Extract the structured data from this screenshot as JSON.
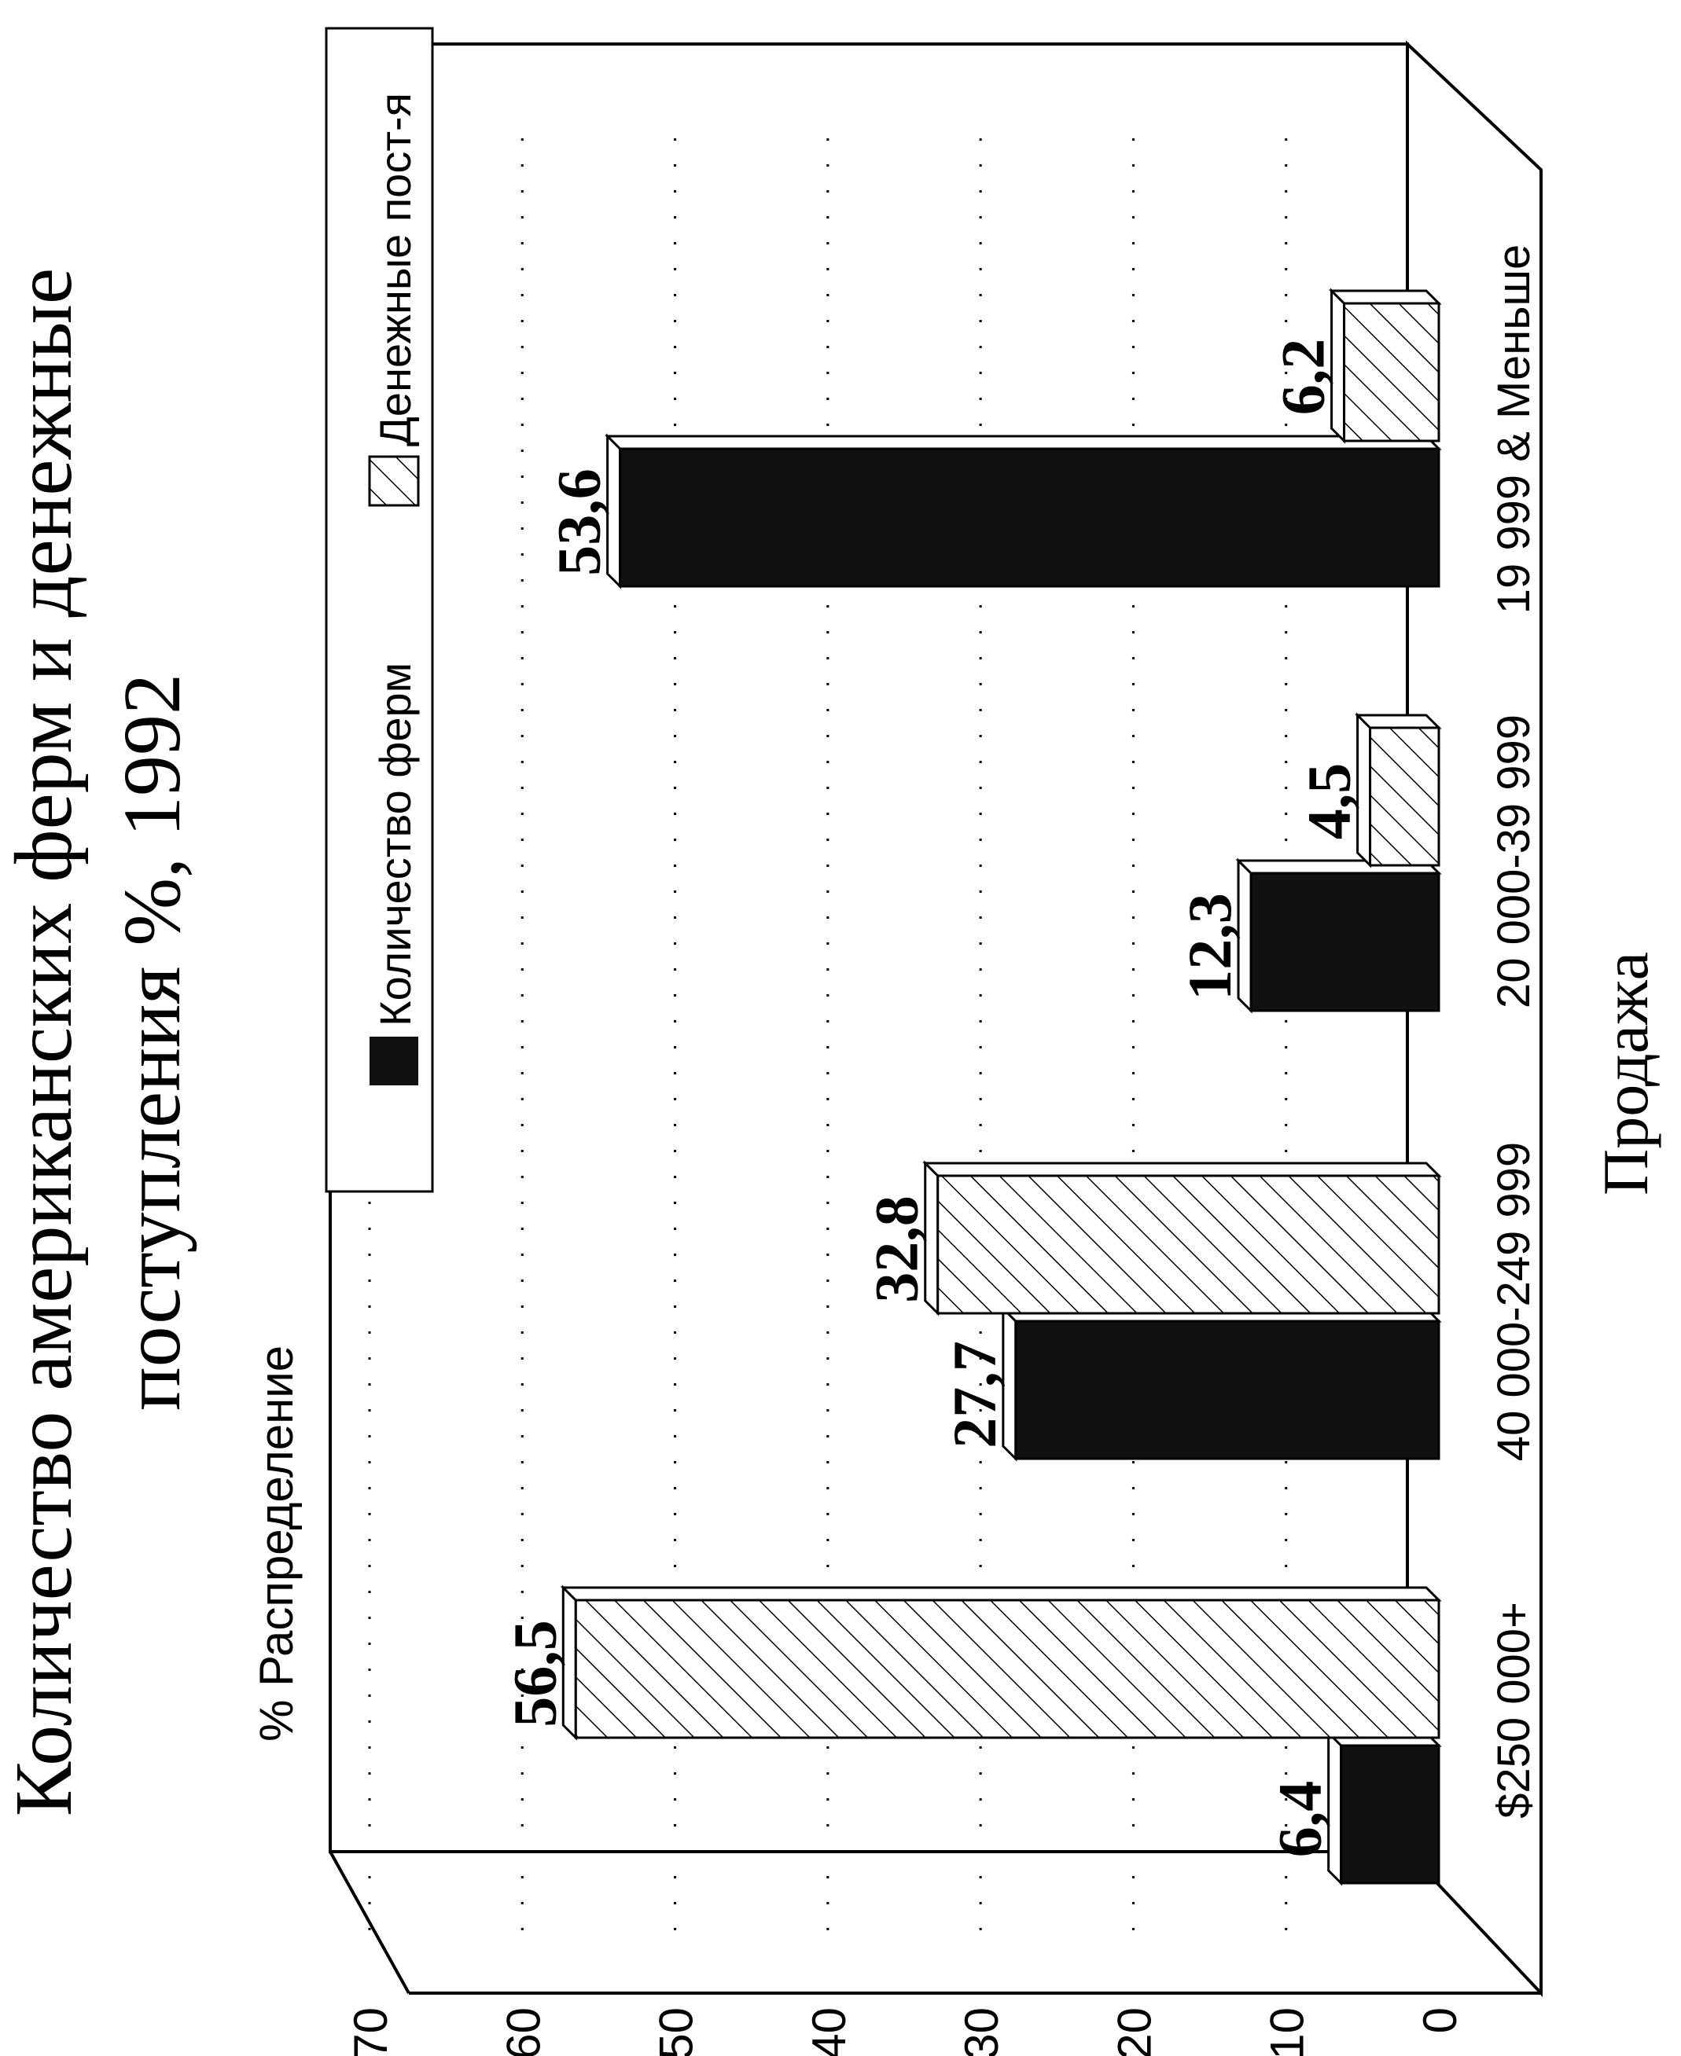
{
  "chart_data": {
    "type": "bar",
    "title_line1": "Количество американских ферм и денежные",
    "title_line2": "поступления %, 1992",
    "ylabel": "% Распределение",
    "xlabel": "Продажа",
    "ylim": [
      0,
      70
    ],
    "yticks": [
      "0",
      "10",
      "20",
      "30",
      "40",
      "50",
      "60",
      "70"
    ],
    "categories": [
      "$250 000+",
      "40 000-249 999",
      "20 000-39 999",
      "19 999  & Меньше"
    ],
    "series": [
      {
        "name": "Количество ферм",
        "values": [
          6.4,
          27.7,
          12.3,
          53.6
        ],
        "labels": [
          "6,4",
          "27,7",
          "12,3",
          "53,6"
        ],
        "fill": "#111111"
      },
      {
        "name": "Денежные пост-я",
        "values": [
          56.5,
          32.8,
          4.5,
          6.2
        ],
        "labels": [
          "56,5",
          "32,8",
          "4,5",
          "6,2"
        ],
        "fill": "hatch"
      }
    ],
    "legend_position": "top",
    "grid": true
  }
}
